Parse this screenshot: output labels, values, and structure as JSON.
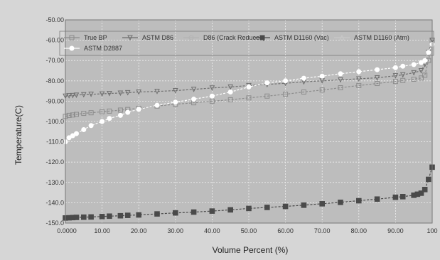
{
  "chart_data": {
    "type": "line",
    "title": "",
    "xlabel": "Volume Percent (%)",
    "ylabel": "Temperature(C)",
    "xlim": [
      0,
      100
    ],
    "ylim": [
      -150,
      -50
    ],
    "x_ticks": [
      0,
      10,
      20,
      30,
      40,
      50,
      60,
      70,
      80,
      90,
      100
    ],
    "x_tick_labels": [
      "0.0000",
      "10.00",
      "20.00",
      "30.00",
      "40.00",
      "50.00",
      "60.00",
      "70.00",
      "80.00",
      "90.00",
      "100"
    ],
    "y_ticks": [
      -50,
      -60,
      -70,
      -80,
      -90,
      -100,
      -110,
      -120,
      -130,
      -140,
      -150
    ],
    "y_tick_labels": [
      "-50.00",
      "-60.00",
      "-70.00",
      "-80.00",
      "-90.00",
      "-100.0",
      "-110.0",
      "-120.0",
      "-130.0",
      "-140.0",
      "-150.0"
    ],
    "grid": true,
    "legend_position": "top",
    "series": [
      {
        "name": "True BP",
        "marker": "open-square",
        "color": "#8c8c8c",
        "x": [
          0,
          1,
          2,
          3,
          5,
          7,
          10,
          12,
          15,
          17,
          20,
          25,
          30,
          35,
          40,
          45,
          50,
          55,
          60,
          65,
          70,
          75,
          80,
          85,
          90,
          92,
          95,
          97,
          98,
          99,
          100
        ],
        "y": [
          -97.5,
          -97,
          -96.8,
          -96.5,
          -96,
          -95.7,
          -95.2,
          -94.9,
          -94.4,
          -94.1,
          -93.5,
          -92.4,
          -91.5,
          -90.8,
          -90,
          -89.3,
          -88.4,
          -87.5,
          -86.6,
          -85.5,
          -84.5,
          -83.4,
          -82.3,
          -81.3,
          -80.3,
          -79.8,
          -79.2,
          -78.6,
          -77.2,
          -70,
          -60
        ]
      },
      {
        "name": "ASTM D86",
        "marker": "open-triangle-down",
        "color": "#6e6e6e",
        "x": [
          0,
          1,
          2,
          3,
          5,
          7,
          10,
          12,
          15,
          17,
          20,
          25,
          30,
          35,
          40,
          45,
          50,
          55,
          60,
          65,
          70,
          75,
          80,
          85,
          90,
          92,
          95,
          97,
          98,
          99,
          100
        ],
        "y": [
          -87.5,
          -87.3,
          -87.2,
          -87,
          -86.8,
          -86.6,
          -86.4,
          -86.2,
          -86,
          -85.8,
          -85.5,
          -85.2,
          -84.8,
          -84.2,
          -83.5,
          -83,
          -82.3,
          -81.8,
          -81.2,
          -80.5,
          -80,
          -79.5,
          -79,
          -78.5,
          -77.5,
          -77,
          -76,
          -75,
          -72,
          -66,
          -60
        ]
      },
      {
        "name": "D86 (Crack Reduced)",
        "marker": "open-circle",
        "color": "#b4b4b4",
        "x": [],
        "y": []
      },
      {
        "name": "ASTM D1160 (Vac)",
        "marker": "filled-square",
        "color": "#4a4a4a",
        "x": [
          0,
          1,
          2,
          3,
          5,
          7,
          10,
          12,
          15,
          17,
          20,
          25,
          30,
          35,
          40,
          45,
          50,
          55,
          60,
          65,
          70,
          75,
          80,
          85,
          90,
          92,
          95,
          96,
          97,
          98,
          99,
          100
        ],
        "y": [
          -147.5,
          -147.4,
          -147.3,
          -147.2,
          -147.1,
          -147,
          -146.8,
          -146.6,
          -146.4,
          -146.2,
          -146,
          -145.5,
          -145,
          -144.6,
          -144.1,
          -143.5,
          -142.8,
          -142.3,
          -141.8,
          -141.2,
          -140.5,
          -139.8,
          -139,
          -138.2,
          -137.3,
          -137,
          -136.3,
          -135.8,
          -135.3,
          -133.5,
          -128.5,
          -122.5
        ]
      },
      {
        "name": "ASTM D1160 (Atm)",
        "marker": "open-triangle-up",
        "color": "#c8c8c8",
        "x": [],
        "y": []
      },
      {
        "name": "ASTM D2887",
        "marker": "filled-circle",
        "color": "#ffffff",
        "x": [
          0,
          1,
          2,
          3,
          5,
          7,
          10,
          12,
          15,
          17,
          20,
          25,
          30,
          35,
          40,
          45,
          50,
          55,
          60,
          65,
          70,
          75,
          80,
          85,
          90,
          92,
          95,
          97,
          98,
          99,
          100
        ],
        "y": [
          -110,
          -108,
          -107,
          -106,
          -104,
          -102,
          -100,
          -98.5,
          -97,
          -95.5,
          -94,
          -92,
          -90.5,
          -89,
          -87.5,
          -85.5,
          -83,
          -81,
          -80,
          -78.7,
          -77.7,
          -76.5,
          -75.5,
          -74.5,
          -73.5,
          -72.8,
          -72,
          -71,
          -70,
          -66,
          -62
        ]
      }
    ]
  }
}
